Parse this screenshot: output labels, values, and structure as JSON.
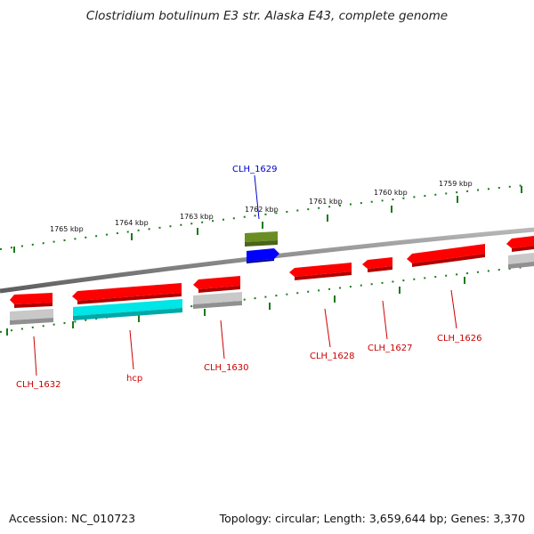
{
  "title": "Clostridium botulinum E3 str. Alaska E43, complete genome",
  "accession_text": "Accession: NC_010723",
  "summary_text": "Topology: circular; Length: 3,659,644 bp; Genes: 3,370",
  "ticks": [
    "1765 kbp",
    "1764 kbp",
    "1763 kbp",
    "1762 kbp",
    "1761 kbp",
    "1760 kbp",
    "1759 kbp"
  ],
  "genes": [
    {
      "label": "CLH_1632",
      "color": "#cc0000"
    },
    {
      "label": "hcp",
      "color": "#cc0000"
    },
    {
      "label": "CLH_1630",
      "color": "#cc0000"
    },
    {
      "label": "CLH_1629",
      "color": "#0000cc"
    },
    {
      "label": "CLH_1628",
      "color": "#cc0000"
    },
    {
      "label": "CLH_1627",
      "color": "#cc0000"
    },
    {
      "label": "CLH_1626",
      "color": "#cc0000"
    }
  ],
  "colors": {
    "cds": "#ff0000",
    "gene_minus": "#c0c0c0",
    "cyan": "#00e5e5",
    "blue": "#0000ff",
    "olive": "#6b8e23",
    "tick_green": "#1a7a1a",
    "backbone": "#808080"
  }
}
